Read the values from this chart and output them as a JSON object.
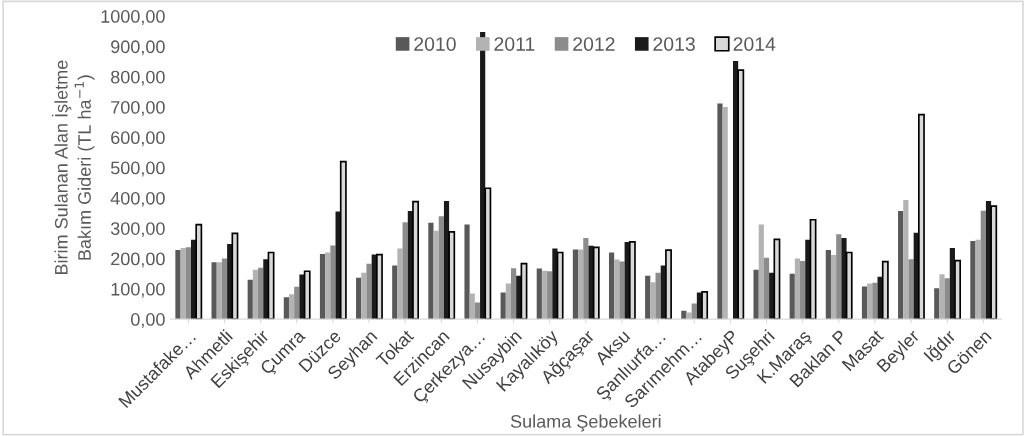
{
  "chart_data": {
    "type": "bar",
    "xlabel": "Sulama Şebekeleri",
    "ylabel": "Birim Sulanan Alan İşletme\nBakım Gideri (TL ha$^{−1}$)",
    "categories": [
      "Mustafake…",
      "Ahmetli",
      "Eskişehir",
      "Çumra",
      "Düzce",
      "Seyhan",
      "Tokat",
      "Erzincan",
      "Çerkezya…",
      "Nusaybin",
      "Kayalıköy",
      "Ağçaşar",
      "Aksu",
      "Şanlıurfa…",
      "Sarımehm…",
      "AtabeyP",
      "Suşehri",
      "K.Maraş",
      "Baklan P",
      "Masat",
      "Beyler",
      "Iğdır",
      "Gönen"
    ],
    "series": [
      {
        "name": "2010",
        "color": "#595959",
        "values": [
          228,
          188,
          130,
          72,
          215,
          137,
          177,
          318,
          312,
          88,
          167,
          230,
          220,
          143,
          28,
          712,
          163,
          150,
          228,
          108,
          357,
          102,
          258
        ]
      },
      {
        "name": "2011",
        "color": "#b3b3b3",
        "values": [
          235,
          188,
          163,
          82,
          220,
          153,
          233,
          292,
          85,
          118,
          160,
          230,
          197,
          122,
          22,
          700,
          312,
          200,
          212,
          118,
          393,
          148,
          262
        ]
      },
      {
        "name": "2012",
        "color": "#8c8c8c",
        "values": [
          237,
          200,
          170,
          107,
          243,
          183,
          320,
          340,
          55,
          168,
          158,
          268,
          190,
          153,
          52,
          null,
          203,
          192,
          280,
          120,
          198,
          135,
          358
        ]
      },
      {
        "name": "2013",
        "color": "#1a1a1a",
        "values": [
          262,
          248,
          198,
          147,
          355,
          213,
          357,
          390,
          948,
          143,
          233,
          242,
          255,
          177,
          88,
          852,
          153,
          262,
          268,
          140,
          285,
          235,
          390
        ]
      },
      {
        "name": "2014",
        "color": "#d9d9d9",
        "values": [
          312,
          283,
          220,
          158,
          520,
          213,
          388,
          288,
          432,
          183,
          220,
          237,
          255,
          228,
          90,
          822,
          263,
          328,
          220,
          190,
          675,
          193,
          373
        ]
      }
    ],
    "ylim": [
      0,
      1000
    ],
    "yticks": [
      {
        "value": 0,
        "label": "0,00"
      },
      {
        "value": 100,
        "label": "100,00"
      },
      {
        "value": 200,
        "label": "200,00"
      },
      {
        "value": 300,
        "label": "300,00"
      },
      {
        "value": 400,
        "label": "400,00"
      },
      {
        "value": 500,
        "label": "500,00"
      },
      {
        "value": 600,
        "label": "600,00"
      },
      {
        "value": 700,
        "label": "700,00"
      },
      {
        "value": 800,
        "label": "800,00"
      },
      {
        "value": 900,
        "label": "900,00"
      },
      {
        "value": 1000,
        "label": "1000,00"
      }
    ],
    "grid": false,
    "legend": "top"
  }
}
